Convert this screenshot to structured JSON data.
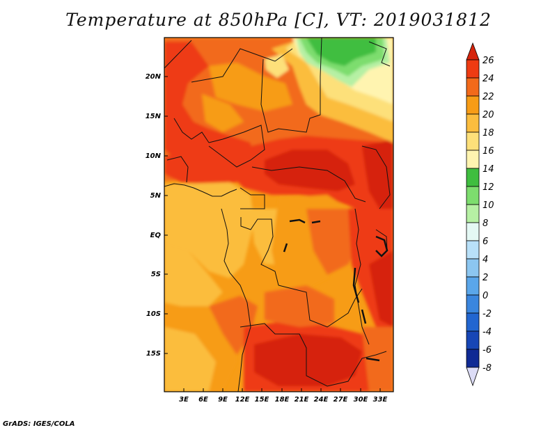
{
  "title": "Temperature at 850hPa [C], VT: 2019031812",
  "credit": "GrADS: IGES/COLA",
  "lat_labels": [
    "20N",
    "15N",
    "10N",
    "5N",
    "EQ",
    "5S",
    "10S",
    "15S"
  ],
  "lon_labels": [
    "3E",
    "6E",
    "9E",
    "12E",
    "15E",
    "18E",
    "21E",
    "24E",
    "27E",
    "30E",
    "33E"
  ],
  "colorbar": {
    "labels": [
      "26",
      "24",
      "22",
      "20",
      "18",
      "16",
      "14",
      "12",
      "10",
      "8",
      "6",
      "4",
      "2",
      "0",
      "-2",
      "-4",
      "-6",
      "-8"
    ],
    "colors": {
      "above_26": "#d6240c",
      "24_26": "#ee3b12",
      "22_24": "#f26a1a",
      "20_22": "#f79c16",
      "18_20": "#fbbd3e",
      "16_18": "#fde07a",
      "14_16": "#fff4b0",
      "12_14": "#3fbe3f",
      "10_12": "#7ddd6e",
      "8_10": "#b6f0a4",
      "6_8": "#e4f8f4",
      "4_6": "#b8e0f8",
      "2_4": "#8cc6f0",
      "0_2": "#5aa6ea",
      "m2_0": "#3a86de",
      "m4_m2": "#2266d0",
      "m6_m4": "#1746b6",
      "m8_m6": "#0f2a94",
      "below_m8": "#dcdcf6"
    }
  }
}
